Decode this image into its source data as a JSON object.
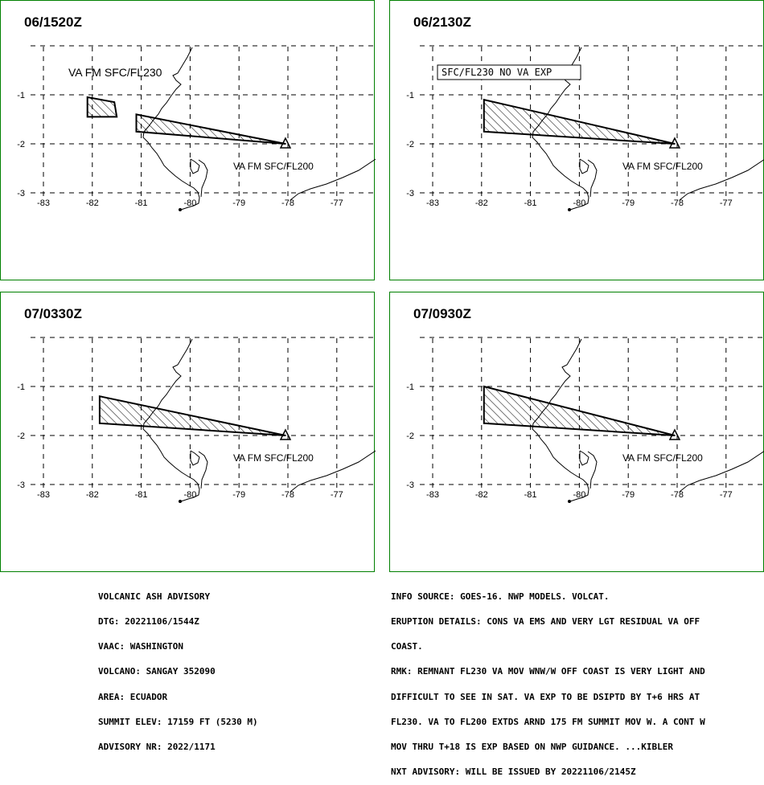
{
  "panels": [
    {
      "time_label": "06/1520Z",
      "box_label": "",
      "plain_label": "VA FM SFC/FL230",
      "cloud_label": "VA FM SFC/FL200",
      "polygons": [
        [
          [
            -82.1,
            -1.05
          ],
          [
            -81.55,
            -1.15
          ],
          [
            -81.5,
            -1.45
          ],
          [
            -82.1,
            -1.45
          ]
        ],
        [
          [
            -81.1,
            -1.4
          ],
          [
            -78.05,
            -2.0
          ],
          [
            -81.1,
            -1.75
          ]
        ]
      ]
    },
    {
      "time_label": "06/2130Z",
      "box_label": "SFC/FL230 NO VA EXP",
      "plain_label": "",
      "cloud_label": "VA FM SFC/FL200",
      "polygons": [
        [
          [
            -81.95,
            -1.1
          ],
          [
            -78.05,
            -2.0
          ],
          [
            -81.95,
            -1.75
          ]
        ]
      ]
    },
    {
      "time_label": "07/0330Z",
      "box_label": "",
      "plain_label": "",
      "cloud_label": "VA FM SFC/FL200",
      "polygons": [
        [
          [
            -81.85,
            -1.2
          ],
          [
            -78.05,
            -2.0
          ],
          [
            -81.85,
            -1.75
          ]
        ]
      ]
    },
    {
      "time_label": "07/0930Z",
      "box_label": "",
      "plain_label": "",
      "cloud_label": "VA FM SFC/FL200",
      "polygons": [
        [
          [
            -81.95,
            -1.0
          ],
          [
            -78.05,
            -2.0
          ],
          [
            -81.95,
            -1.75
          ]
        ]
      ]
    }
  ],
  "axis": {
    "lon_ticks": [
      "-83",
      "-82",
      "-81",
      "-80",
      "-79",
      "-78",
      "-77"
    ],
    "lat_ticks": [
      "-1",
      "-2",
      "-3"
    ]
  },
  "volcano": {
    "lon": -78.05,
    "lat": -2.0
  },
  "advisory_left": [
    "VOLCANIC ASH ADVISORY",
    "DTG: 20221106/1544Z",
    "VAAC: WASHINGTON",
    "VOLCANO: SANGAY 352090",
    "AREA: ECUADOR",
    "SUMMIT ELEV: 17159 FT (5230 M)",
    "ADVISORY NR: 2022/1171"
  ],
  "advisory_right": [
    "INFO SOURCE: GOES-16. NWP MODELS. VOLCAT.",
    "ERUPTION DETAILS: CONS VA EMS AND VERY LGT RESIDUAL VA OFF",
    "COAST.",
    "RMK: REMNANT FL230 VA MOV WNW/W OFF COAST IS VERY LIGHT AND",
    "DIFFICULT TO SEE IN SAT. VA EXP TO BE DSIPTD BY T+6 HRS AT",
    "FL230. VA TO FL200 EXTDS ARND 175 FM SUMMIT MOV W. A CONT W",
    "MOV THRU T+18 IS EXP BASED ON NWP GUIDANCE. ...KIBLER",
    "NXT ADVISORY: WILL BE ISSUED BY 20221106/2145Z"
  ],
  "colors": {
    "frame": "#008000",
    "ink": "#000000"
  }
}
